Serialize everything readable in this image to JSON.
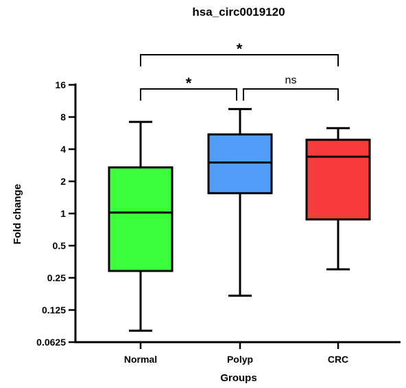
{
  "chart_data": {
    "type": "box",
    "title": "hsa_circ0019120",
    "xlabel": "Groups",
    "ylabel": "Fold change",
    "y_scale": "log2",
    "ylim": [
      0.0625,
      16
    ],
    "yticks": [
      0.0625,
      0.125,
      0.25,
      0.5,
      1,
      2,
      4,
      8,
      16
    ],
    "ytick_labels": [
      "0.0625",
      "0.125",
      "0.25",
      "0.5",
      "1",
      "2",
      "4",
      "8",
      "16"
    ],
    "categories": [
      "Normal",
      "Polyp",
      "CRC"
    ],
    "boxes": [
      {
        "name": "Normal",
        "whisker_low": 0.08,
        "q1": 0.29,
        "median": 1.02,
        "q3": 2.7,
        "whisker_high": 7.2,
        "color": "#3cff3c"
      },
      {
        "name": "Polyp",
        "whisker_low": 0.17,
        "q1": 1.55,
        "median": 3.0,
        "q3": 5.5,
        "whisker_high": 9.5,
        "color": "#4f9cf9"
      },
      {
        "name": "CRC",
        "whisker_low": 0.3,
        "q1": 0.88,
        "median": 3.4,
        "q3": 4.9,
        "whisker_high": 6.3,
        "color": "#f83c3c"
      }
    ],
    "significance": [
      {
        "groups": [
          "Normal",
          "CRC"
        ],
        "label": "*"
      },
      {
        "groups": [
          "Normal",
          "Polyp"
        ],
        "label": "*"
      },
      {
        "groups": [
          "Polyp",
          "CRC"
        ],
        "label": "ns"
      }
    ],
    "grid": false,
    "legend": "none"
  }
}
